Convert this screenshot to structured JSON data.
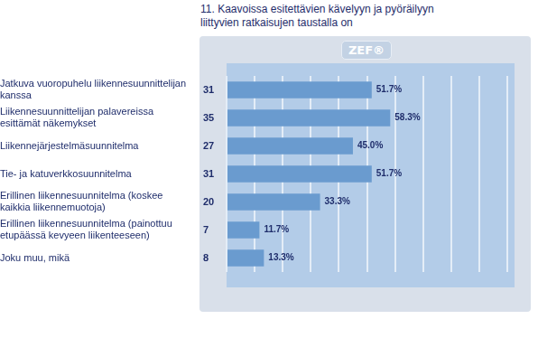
{
  "chart_data": {
    "type": "bar",
    "orientation": "horizontal",
    "title": "11. Kaavoissa esitettävien kävelyyn ja pyöräilyyn liittyvien ratkaisujen taustalla on",
    "logo": "ZEF®",
    "categories": [
      "Jatkuva vuoropuhelu liikennesuunnittelijan kanssa",
      "Liikennesuunnittelijan palavereissa esittämät näkemykset",
      "Liikennejärjestelmäsuunnitelma",
      "Tie- ja katuverkkosuunnitelma",
      "Erillinen liikennesuunnitelma (koskee kaikkia liikennemuotoja)",
      "Erillinen liikennesuunnitelma (painottuu etupäässä kevyeen liikenteeseen)",
      "Joku muu, mikä"
    ],
    "counts": [
      31,
      35,
      27,
      31,
      20,
      7,
      8
    ],
    "values": [
      51.7,
      58.3,
      45.0,
      51.7,
      33.3,
      11.7,
      13.3
    ],
    "value_labels": [
      "51.7%",
      "58.3%",
      "45.0%",
      "51.7%",
      "33.3%",
      "11.7%",
      "13.3%"
    ],
    "color": "#6a9bcf",
    "xlim": [
      0,
      100
    ],
    "xticks": [
      0,
      10,
      20,
      30,
      40,
      50,
      60,
      70,
      80,
      90,
      100
    ],
    "grid": true,
    "tick_labels": "y",
    "data_labels": true
  }
}
